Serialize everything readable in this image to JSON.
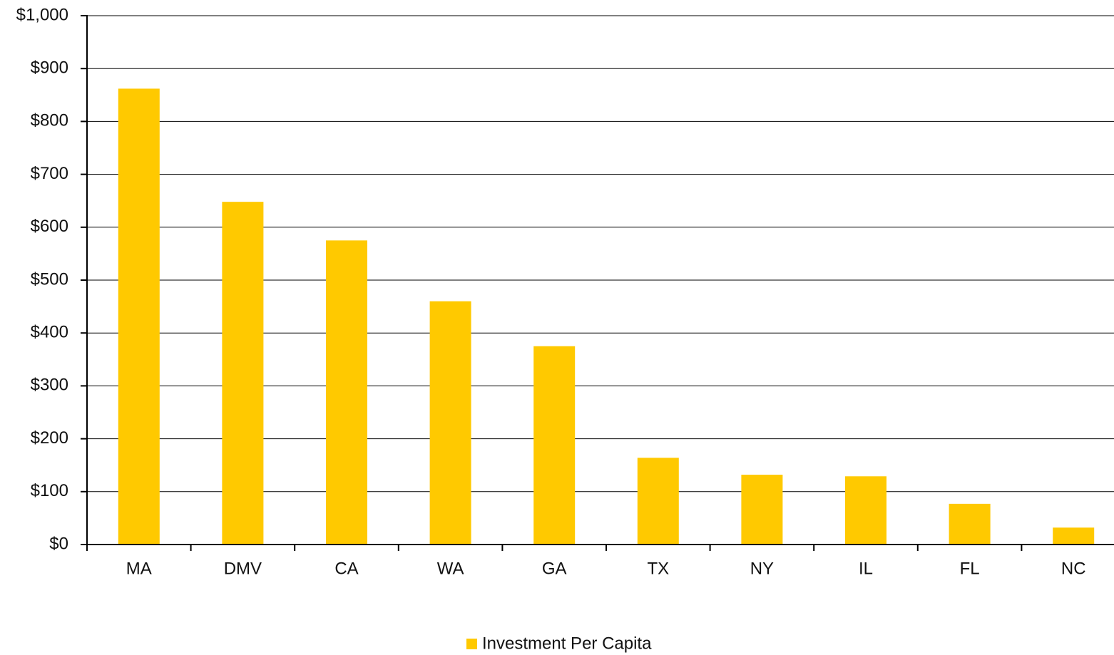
{
  "chart_data": {
    "type": "bar",
    "categories": [
      "MA",
      "DMV",
      "CA",
      "WA",
      "GA",
      "TX",
      "NY",
      "IL",
      "FL",
      "NC"
    ],
    "series": [
      {
        "name": "Investment Per Capita",
        "color": "#ffc900",
        "values": [
          862,
          648,
          575,
          460,
          375,
          164,
          132,
          129,
          77,
          32
        ]
      }
    ],
    "ylim": [
      0,
      1000
    ],
    "yticks": [
      {
        "value": 0,
        "label": "$0"
      },
      {
        "value": 100,
        "label": "$100"
      },
      {
        "value": 200,
        "label": "$200"
      },
      {
        "value": 300,
        "label": "$300"
      },
      {
        "value": 400,
        "label": "$400"
      },
      {
        "value": 500,
        "label": "$500"
      },
      {
        "value": 600,
        "label": "$600"
      },
      {
        "value": 700,
        "label": "$700"
      },
      {
        "value": 800,
        "label": "$800"
      },
      {
        "value": 900,
        "label": "$900"
      },
      {
        "value": 1000,
        "label": "$1,000"
      }
    ],
    "grid": true,
    "legend": "bottom"
  }
}
